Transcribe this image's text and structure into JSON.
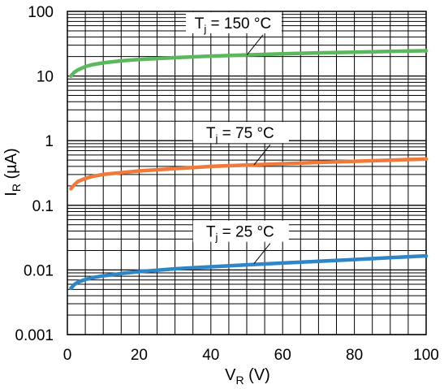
{
  "chart_data": {
    "type": "line",
    "title": "",
    "xlabel": "V",
    "xlabel_sub": "R",
    "xlabel_unit": " (V)",
    "ylabel": "I",
    "ylabel_sub": "R",
    "ylabel_unit": " (µA)",
    "xlim": [
      0,
      100
    ],
    "ylim": [
      0.001,
      100
    ],
    "y_scale": "log",
    "grid": true,
    "x_ticks": [
      0,
      20,
      40,
      60,
      80,
      100
    ],
    "x_tick_labels": [
      "0",
      "20",
      "40",
      "60",
      "80",
      "100"
    ],
    "y_ticks": [
      0.001,
      0.01,
      0.1,
      1,
      10,
      100
    ],
    "y_tick_labels": [
      "0.001",
      "0.01",
      "0.1",
      "1",
      "10",
      "100"
    ],
    "series": [
      {
        "name": "T j = 150 °C",
        "label_main": "T",
        "label_sub": "j",
        "label_rest": " = 150 °C",
        "color": "#5cb85c",
        "label_anchor": [
          50,
          21
        ],
        "x": [
          1,
          2,
          3,
          5,
          7,
          10,
          15,
          20,
          30,
          40,
          50,
          60,
          70,
          80,
          90,
          100
        ],
        "y": [
          10.0,
          11.5,
          12.5,
          14.0,
          15.0,
          16.0,
          17.2,
          18.0,
          19.2,
          20.3,
          21.2,
          22.0,
          22.8,
          23.4,
          24.0,
          24.6
        ]
      },
      {
        "name": "T j = 75 °C",
        "label_main": "T",
        "label_sub": "j",
        "label_rest": " = 75 °C",
        "color": "#f07a3c",
        "label_anchor": [
          52,
          0.42
        ],
        "x": [
          1,
          2,
          3,
          5,
          7,
          10,
          15,
          20,
          30,
          40,
          50,
          60,
          70,
          80,
          90,
          100
        ],
        "y": [
          0.18,
          0.21,
          0.235,
          0.26,
          0.28,
          0.3,
          0.32,
          0.34,
          0.37,
          0.4,
          0.42,
          0.44,
          0.46,
          0.48,
          0.5,
          0.52
        ]
      },
      {
        "name": "T j = 25 °C",
        "label_main": "T",
        "label_sub": "j",
        "label_rest": " = 25 °C",
        "color": "#2f86c6",
        "label_anchor": [
          52,
          0.0125
        ],
        "x": [
          1,
          2,
          3,
          5,
          7,
          10,
          15,
          20,
          30,
          40,
          50,
          60,
          70,
          80,
          90,
          100
        ],
        "y": [
          0.0052,
          0.006,
          0.0065,
          0.0071,
          0.0076,
          0.0081,
          0.0088,
          0.0094,
          0.0104,
          0.0112,
          0.012,
          0.0128,
          0.0136,
          0.0145,
          0.0155,
          0.0165
        ]
      }
    ]
  }
}
